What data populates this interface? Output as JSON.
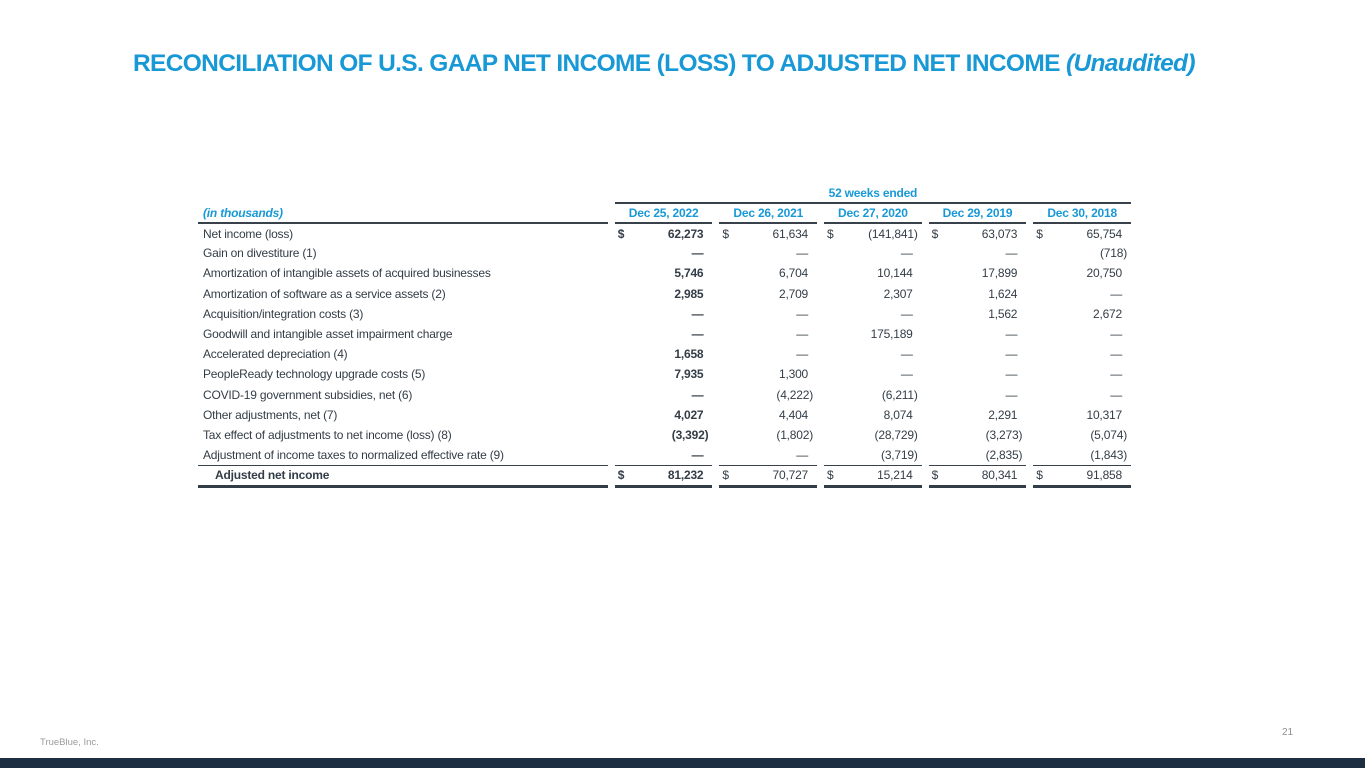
{
  "slide": {
    "title_main": "RECONCILIATION OF U.S. GAAP NET INCOME (LOSS) TO ADJUSTED NET INCOME ",
    "title_suffix": "(Unaudited)",
    "footer": "TrueBlue, Inc.",
    "page_number": "21",
    "accent_color": "#1899D6",
    "bottom_bar_color": "#1D2D42"
  },
  "table": {
    "group_header": "52 weeks ended",
    "label_header": "(in thousands)",
    "columns": [
      "Dec 25, 2022",
      "Dec 26, 2021",
      "Dec 27, 2020",
      "Dec 29, 2019",
      "Dec 30, 2018"
    ],
    "dollar_sign": "$",
    "rows": [
      {
        "label": "Net income (loss)",
        "dollar": true,
        "values": [
          "62,273",
          "61,634",
          "(141,841)",
          "63,073",
          "65,754"
        ]
      },
      {
        "label": "Gain on divestiture (1)",
        "dollar": false,
        "values": [
          "—",
          "—",
          "—",
          "—",
          "(718)"
        ]
      },
      {
        "label": "Amortization of intangible assets of acquired businesses",
        "dollar": false,
        "values": [
          "5,746",
          "6,704",
          "10,144",
          "17,899",
          "20,750"
        ]
      },
      {
        "label": "Amortization of software as a service assets (2)",
        "dollar": false,
        "values": [
          "2,985",
          "2,709",
          "2,307",
          "1,624",
          "—"
        ]
      },
      {
        "label": "Acquisition/integration costs (3)",
        "dollar": false,
        "values": [
          "—",
          "—",
          "—",
          "1,562",
          "2,672"
        ]
      },
      {
        "label": "Goodwill and intangible asset impairment charge",
        "dollar": false,
        "values": [
          "—",
          "—",
          "175,189",
          "—",
          "—"
        ]
      },
      {
        "label": "Accelerated depreciation (4)",
        "dollar": false,
        "values": [
          "1,658",
          "—",
          "—",
          "—",
          "—"
        ]
      },
      {
        "label": "PeopleReady technology upgrade costs (5)",
        "dollar": false,
        "values": [
          "7,935",
          "1,300",
          "—",
          "—",
          "—"
        ]
      },
      {
        "label": "COVID-19 government subsidies, net (6)",
        "dollar": false,
        "values": [
          "—",
          "(4,222)",
          "(6,211)",
          "—",
          "—"
        ]
      },
      {
        "label": "Other adjustments, net (7)",
        "dollar": false,
        "values": [
          "4,027",
          "4,404",
          "8,074",
          "2,291",
          "10,317"
        ]
      },
      {
        "label": "Tax effect of adjustments to net income (loss) (8)",
        "dollar": false,
        "values": [
          "(3,392)",
          "(1,802)",
          "(28,729)",
          "(3,273)",
          "(5,074)"
        ]
      },
      {
        "label": "Adjustment of income taxes to normalized effective rate (9)",
        "dollar": false,
        "values": [
          "—",
          "—",
          "(3,719)",
          "(2,835)",
          "(1,843)"
        ]
      }
    ],
    "total_row": {
      "label": "Adjusted net income",
      "dollar": true,
      "values": [
        "81,232",
        "70,727",
        "15,214",
        "80,341",
        "91,858"
      ]
    }
  }
}
